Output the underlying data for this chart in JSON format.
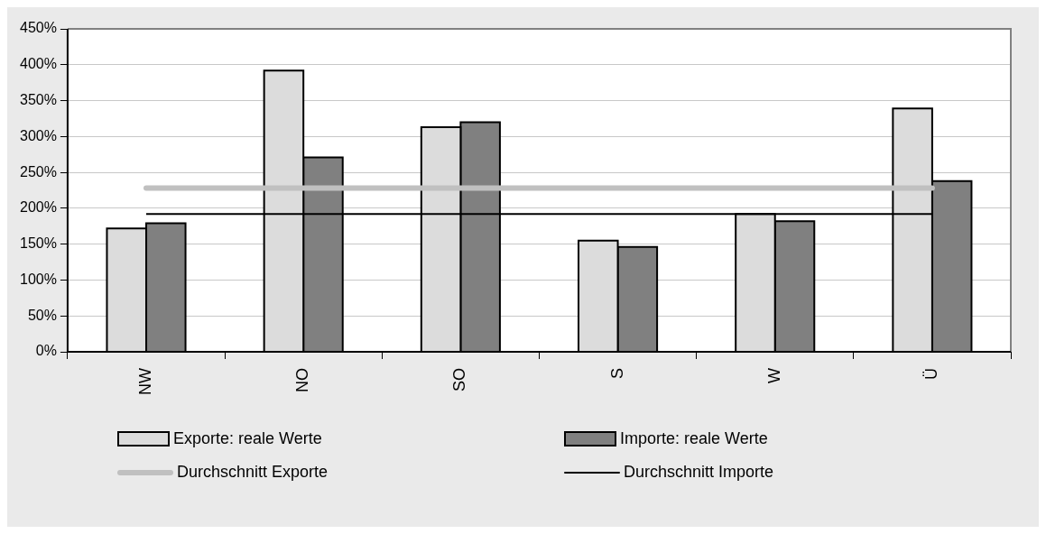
{
  "chart_data": {
    "type": "bar",
    "categories": [
      "NW",
      "NO",
      "SO",
      "S",
      "W",
      "Ü"
    ],
    "series": [
      {
        "name": "Exporte: reale Werte",
        "color": "#dcdcdc",
        "values": [
          172,
          392,
          313,
          155,
          192,
          339
        ]
      },
      {
        "name": "Importe: reale Werte",
        "color": "#808080",
        "values": [
          179,
          271,
          320,
          146,
          182,
          238
        ]
      },
      {
        "name": "Durchschnitt Exporte",
        "type": "line",
        "color": "#c0c0c0",
        "values": [
          228,
          228,
          228,
          228,
          228,
          228
        ]
      },
      {
        "name": "Durchschnitt Importe",
        "type": "line",
        "color": "#000000",
        "values": [
          192,
          192,
          192,
          192,
          192,
          192
        ]
      }
    ],
    "ylim": [
      0,
      450
    ],
    "yticks": [
      {
        "value": 0,
        "label": "0%"
      },
      {
        "value": 50,
        "label": "50%"
      },
      {
        "value": 100,
        "label": "100%"
      },
      {
        "value": 150,
        "label": "150%"
      },
      {
        "value": 200,
        "label": "200%"
      },
      {
        "value": 250,
        "label": "250%"
      },
      {
        "value": 300,
        "label": "300%"
      },
      {
        "value": 350,
        "label": "350%"
      },
      {
        "value": 400,
        "label": "400%"
      },
      {
        "value": 450,
        "label": "450%"
      }
    ],
    "grid": "y",
    "legend": "bottom",
    "marker": "none"
  }
}
